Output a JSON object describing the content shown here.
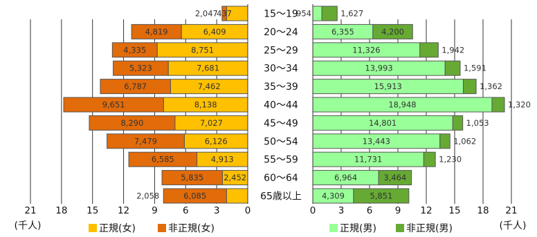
{
  "chart_data": {
    "type": "bar",
    "orientation": "horizontal",
    "layout": "population-pyramid",
    "categories": [
      "15～19",
      "20～24",
      "25～29",
      "30～34",
      "35～39",
      "40～44",
      "45～49",
      "50～54",
      "55～59",
      "60～64",
      "65歳以上"
    ],
    "female": {
      "series": [
        {
          "name": "正規(女)",
          "color": "#ffc000",
          "values": [
            2047,
            6409,
            8751,
            7681,
            7462,
            8138,
            7027,
            6126,
            4913,
            2452,
            2058
          ]
        },
        {
          "name": "非正規(女)",
          "color": "#e26b0a",
          "values": [
            437,
            4819,
            4335,
            5323,
            6787,
            9651,
            8290,
            7479,
            6585,
            5835,
            6085
          ]
        }
      ]
    },
    "male": {
      "series": [
        {
          "name": "正規(男)",
          "color": "#99ff99",
          "values": [
            954,
            6355,
            11326,
            13993,
            15913,
            18948,
            14801,
            13443,
            11731,
            6964,
            4309
          ]
        },
        {
          "name": "非正規(男)",
          "color": "#66aa33",
          "values": [
            1627,
            4200,
            1942,
            1591,
            1362,
            1320,
            1053,
            1062,
            1230,
            3464,
            5851
          ]
        }
      ]
    },
    "value_labels": {
      "female_regular": [
        "2,047",
        "6,409",
        "8,751",
        "7,681",
        "7,462",
        "8,138",
        "7,027",
        "6,126",
        "4,913",
        "2,452",
        "2,058"
      ],
      "female_nonregular": [
        "437",
        "4,819",
        "4,335",
        "5,323",
        "6,787",
        "9,651",
        "8,290",
        "7,479",
        "6,585",
        "5,835",
        "6,085"
      ],
      "male_regular": [
        "954",
        "6,355",
        "11,326",
        "13,993",
        "15,913",
        "18,948",
        "14,801",
        "13,443",
        "11,731",
        "6,964",
        "4,309"
      ],
      "male_nonregular": [
        "1,627",
        "4,200",
        "1,942",
        "1,591",
        "1,362",
        "1,320",
        "1,053",
        "1,062",
        "1,230",
        "3,464",
        "5,851"
      ]
    },
    "x_ticks": [
      0,
      3,
      6,
      9,
      12,
      15,
      18,
      21
    ],
    "x_tick_labels_left": [
      "0",
      "3",
      "6",
      "9",
      "12",
      "15",
      "18",
      "21"
    ],
    "x_tick_labels_right": [
      "0",
      "3",
      "6",
      "9",
      "12",
      "15",
      "18",
      "21"
    ],
    "xlim": [
      0,
      21
    ],
    "unit": "(千人)",
    "legend_left": [
      "正規(女)",
      "非正規(女)"
    ],
    "legend_right": [
      "正規(男)",
      "非正規(男)"
    ],
    "grid": "vertical",
    "colors": {
      "female_regular": "#ffc000",
      "female_nonregular": "#e26b0a",
      "male_regular": "#99ff99",
      "male_nonregular": "#66aa33",
      "grid": "#333333",
      "bar_stroke": "#555555"
    }
  }
}
